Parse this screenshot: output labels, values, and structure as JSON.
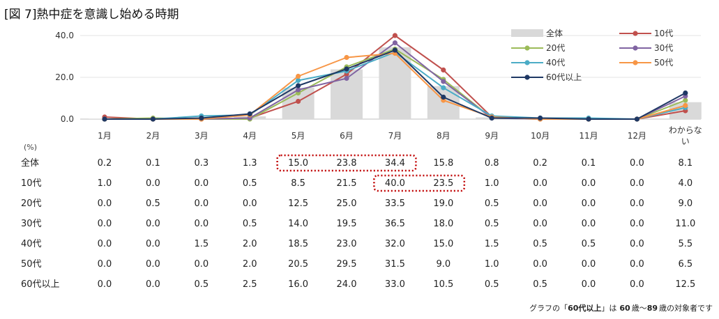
{
  "title": "[図 7]熱中症を意識し始める時期",
  "unit_label": "(%)",
  "note_parts": {
    "prefix": "グラフの「",
    "bold1": "60代以上",
    "mid": "」は",
    "bold2": "60",
    "mid2": "歳〜",
    "bold3": "89",
    "suffix": "歳の対象者です"
  },
  "chart_data": {
    "type": "bar",
    "title": "[図 7]熱中症を意識し始める時期",
    "categories": [
      "1月",
      "2月",
      "3月",
      "4月",
      "5月",
      "6月",
      "7月",
      "8月",
      "9月",
      "10月",
      "11月",
      "12月",
      "わからない"
    ],
    "ylim": [
      0,
      40
    ],
    "yticks": [
      "0.0",
      "20.0",
      "40.0"
    ],
    "grid": true,
    "legend_position": "top-right",
    "bar_series": {
      "name": "全体",
      "color": "#d9d9d9",
      "values": [
        0.2,
        0.1,
        0.3,
        1.3,
        15.0,
        23.8,
        34.4,
        15.8,
        0.8,
        0.2,
        0.1,
        0.0,
        8.1
      ]
    },
    "series": [
      {
        "name": "10代",
        "color": "#c0504d",
        "values": [
          1.0,
          0.0,
          0.0,
          0.5,
          8.5,
          21.5,
          40.0,
          23.5,
          1.0,
          0.0,
          0.0,
          0.0,
          4.0
        ]
      },
      {
        "name": "20代",
        "color": "#9bbb59",
        "values": [
          0.0,
          0.5,
          0.0,
          0.0,
          12.5,
          25.0,
          33.5,
          19.0,
          0.5,
          0.0,
          0.0,
          0.0,
          9.0
        ]
      },
      {
        "name": "30代",
        "color": "#8064a2",
        "values": [
          0.0,
          0.0,
          0.0,
          0.5,
          14.0,
          19.5,
          36.5,
          18.0,
          0.5,
          0.0,
          0.0,
          0.0,
          11.0
        ]
      },
      {
        "name": "40代",
        "color": "#4bacc6",
        "values": [
          0.0,
          0.0,
          1.5,
          2.0,
          18.5,
          23.0,
          32.0,
          15.0,
          1.5,
          0.5,
          0.5,
          0.0,
          5.5
        ]
      },
      {
        "name": "50代",
        "color": "#f79646",
        "values": [
          0.0,
          0.0,
          0.0,
          2.0,
          20.5,
          29.5,
          31.5,
          9.0,
          1.0,
          0.0,
          0.0,
          0.0,
          6.5
        ]
      },
      {
        "name": "60代以上",
        "color": "#1f3864",
        "values": [
          0.0,
          0.0,
          0.5,
          2.5,
          16.0,
          24.0,
          33.0,
          10.5,
          0.5,
          0.5,
          0.0,
          0.0,
          12.5
        ]
      }
    ],
    "table_rows": [
      {
        "label": "全体",
        "values": [
          "0.2",
          "0.1",
          "0.3",
          "1.3",
          "15.0",
          "23.8",
          "34.4",
          "15.8",
          "0.8",
          "0.2",
          "0.1",
          "0.0",
          "8.1"
        ]
      },
      {
        "label": "10代",
        "values": [
          "1.0",
          "0.0",
          "0.0",
          "0.5",
          "8.5",
          "21.5",
          "40.0",
          "23.5",
          "1.0",
          "0.0",
          "0.0",
          "0.0",
          "4.0"
        ]
      },
      {
        "label": "20代",
        "values": [
          "0.0",
          "0.5",
          "0.0",
          "0.0",
          "12.5",
          "25.0",
          "33.5",
          "19.0",
          "0.5",
          "0.0",
          "0.0",
          "0.0",
          "9.0"
        ]
      },
      {
        "label": "30代",
        "values": [
          "0.0",
          "0.0",
          "0.0",
          "0.5",
          "14.0",
          "19.5",
          "36.5",
          "18.0",
          "0.5",
          "0.0",
          "0.0",
          "0.0",
          "11.0"
        ]
      },
      {
        "label": "40代",
        "values": [
          "0.0",
          "0.0",
          "1.5",
          "2.0",
          "18.5",
          "23.0",
          "32.0",
          "15.0",
          "1.5",
          "0.5",
          "0.5",
          "0.0",
          "5.5"
        ]
      },
      {
        "label": "50代",
        "values": [
          "0.0",
          "0.0",
          "0.0",
          "2.0",
          "20.5",
          "29.5",
          "31.5",
          "9.0",
          "1.0",
          "0.0",
          "0.0",
          "0.0",
          "6.5"
        ]
      },
      {
        "label": "60代以上",
        "values": [
          "0.0",
          "0.0",
          "0.5",
          "2.5",
          "16.0",
          "24.0",
          "33.0",
          "10.5",
          "0.5",
          "0.5",
          "0.0",
          "0.0",
          "12.5"
        ]
      }
    ],
    "highlights": [
      {
        "row": "全体",
        "from": "5月",
        "to": "7月",
        "color": "#c00000"
      },
      {
        "row": "10代",
        "from": "7月",
        "to": "8月",
        "color": "#c00000"
      }
    ]
  }
}
